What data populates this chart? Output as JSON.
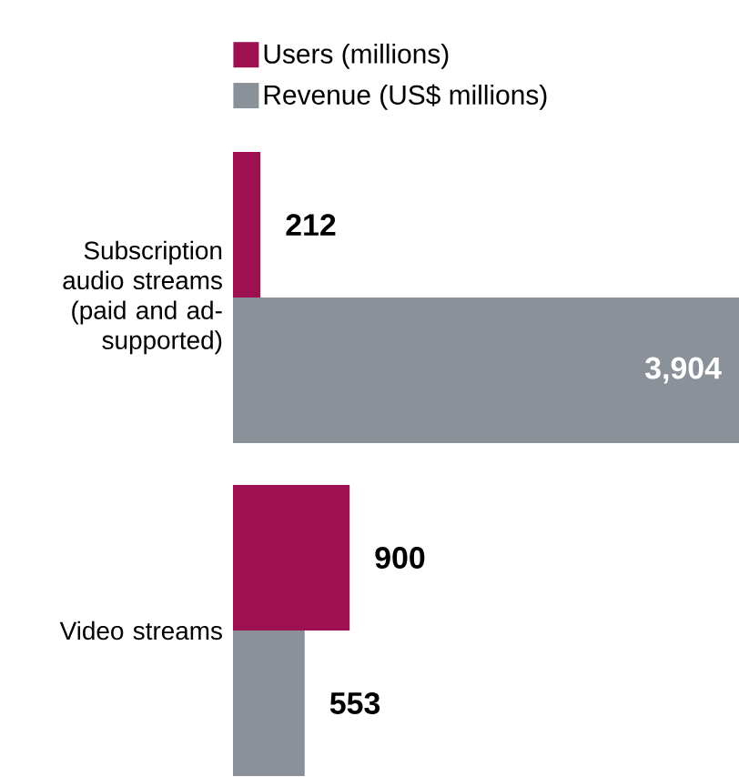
{
  "chart_data": {
    "type": "bar",
    "orientation": "horizontal",
    "legend": "top left",
    "categories": [
      "Subscription audio streams (paid and ad-supported)",
      "Video streams"
    ],
    "series": [
      {
        "name": "Users (millions)",
        "color": "#9e1150",
        "values": [
          212,
          900
        ],
        "value_labels": [
          "212",
          "900"
        ]
      },
      {
        "name": "Revenue (US$ millions)",
        "color": "#8a9199",
        "values": [
          3904,
          553
        ],
        "value_labels": [
          "3,904",
          "553"
        ]
      }
    ]
  }
}
